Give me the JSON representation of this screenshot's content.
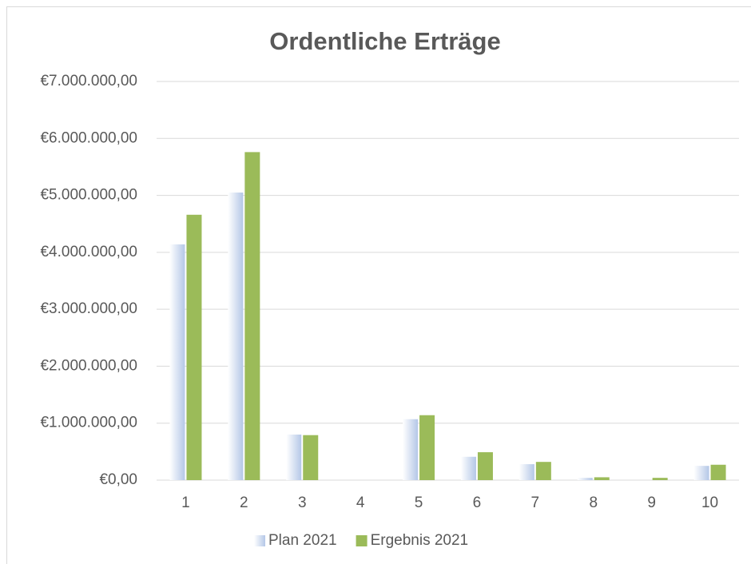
{
  "chart_data": {
    "type": "bar",
    "title": "Ordentliche Erträge",
    "categories": [
      "1",
      "2",
      "3",
      "4",
      "5",
      "6",
      "7",
      "8",
      "9",
      "10"
    ],
    "series": [
      {
        "name": "Plan 2021",
        "color": "#b4c7e7",
        "values": [
          4140000,
          5050000,
          800000,
          0,
          1070000,
          410000,
          280000,
          40000,
          0,
          250000
        ]
      },
      {
        "name": "Ergebnis 2021",
        "color": "#9bbb59",
        "values": [
          4660000,
          5760000,
          790000,
          0,
          1140000,
          490000,
          320000,
          50000,
          40000,
          270000
        ]
      }
    ],
    "ylim": [
      0,
      7000000
    ],
    "yticks": [
      {
        "value": 0,
        "label": "€0,00"
      },
      {
        "value": 1000000,
        "label": "€1.000.000,00"
      },
      {
        "value": 2000000,
        "label": "€2.000.000,00"
      },
      {
        "value": 3000000,
        "label": "€3.000.000,00"
      },
      {
        "value": 4000000,
        "label": "€4.000.000,00"
      },
      {
        "value": 5000000,
        "label": "€5.000.000,00"
      },
      {
        "value": 6000000,
        "label": "€6.000.000,00"
      },
      {
        "value": 7000000,
        "label": "€7.000.000,00"
      }
    ],
    "grid": true,
    "legend": "bottom"
  }
}
